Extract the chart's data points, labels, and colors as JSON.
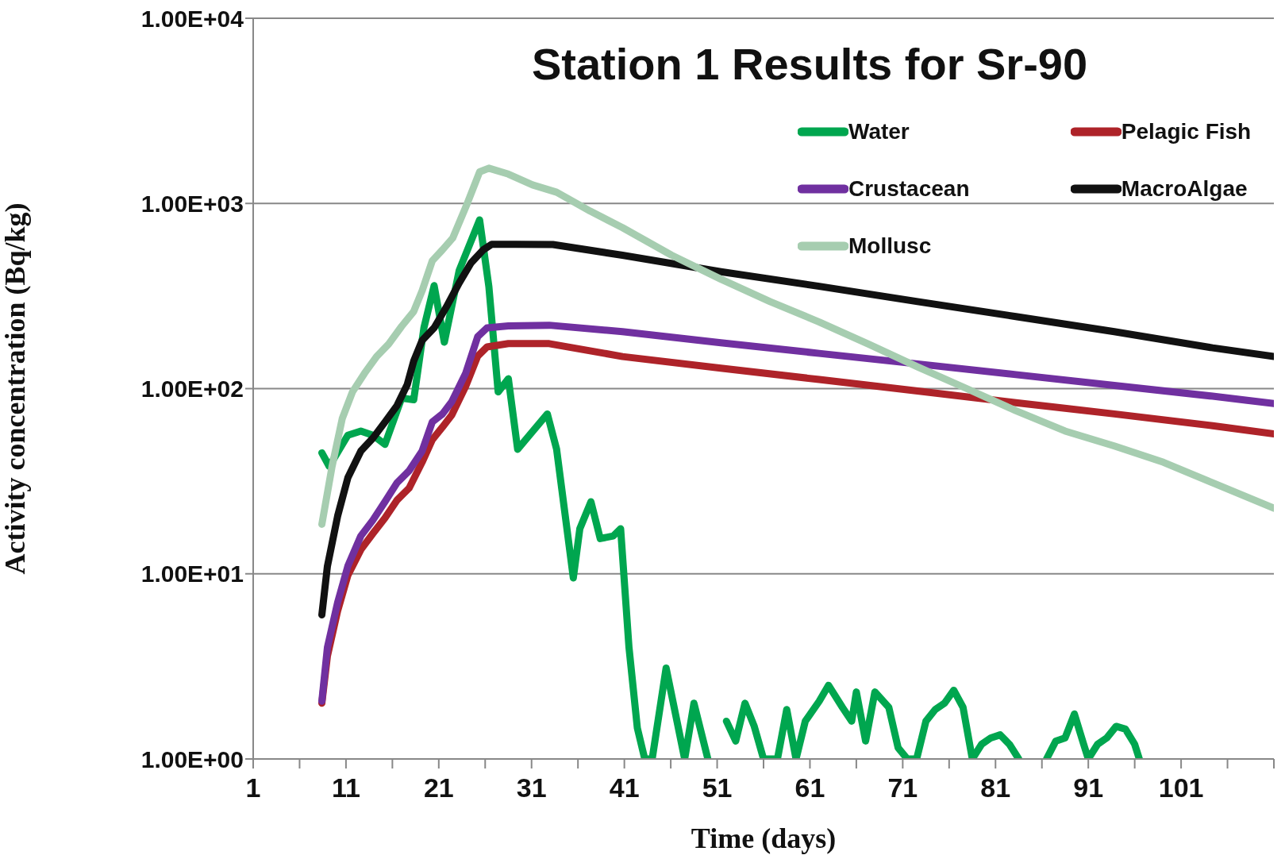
{
  "chart_data": {
    "type": "line",
    "title": "Station 1 Results for Sr-90",
    "xlabel": "Time (days)",
    "ylabel": "Activity concentration (Bq/kg)",
    "log": "y",
    "grid": "y",
    "legend": "top right",
    "marker": "none",
    "line_style": "solid",
    "xlim": [
      1,
      111
    ],
    "xticks": [
      1,
      {
        "value": 6,
        "label": null
      },
      11,
      {
        "value": 16,
        "label": null
      },
      21,
      {
        "value": 26,
        "label": null
      },
      31,
      {
        "value": 36,
        "label": null
      },
      41,
      {
        "value": 46,
        "label": null
      },
      51,
      {
        "value": 56,
        "label": null
      },
      61,
      {
        "value": 66,
        "label": null
      },
      71,
      {
        "value": 76,
        "label": null
      },
      81,
      {
        "value": 86,
        "label": null
      },
      91,
      {
        "value": 96,
        "label": null
      },
      101,
      {
        "value": 106,
        "label": null
      },
      {
        "value": 111,
        "label": null
      }
    ],
    "ylim": [
      1,
      10000
    ],
    "yticks": [
      {
        "value": 1,
        "label": "1.00E+00"
      },
      {
        "value": 10,
        "label": "1.00E+01"
      },
      {
        "value": 100,
        "label": "1.00E+02"
      },
      {
        "value": 1000,
        "label": "1.00E+03"
      },
      {
        "value": 10000,
        "label": "1.00E+04"
      }
    ],
    "series": [
      {
        "name": "Water",
        "color": "#00a64f",
        "x": [
          8.4,
          9.2,
          11.2,
          12.6,
          13.9,
          15.2,
          17,
          18.3,
          19.4,
          20.5,
          21.6,
          23.2,
          25.4,
          26.4,
          27.4,
          28.5,
          29.5,
          30.9,
          32.7,
          33.7,
          35.5,
          36.2,
          37.4,
          38.4,
          39.8,
          40.6,
          41.5,
          42.4,
          43.2,
          44,
          45.5,
          47.5,
          48.5,
          50,
          51.5,
          52,
          53,
          54,
          55,
          56,
          57.5,
          58.5,
          59.5,
          60.5,
          62,
          63,
          64.5,
          65.5,
          66,
          67,
          68,
          69.5,
          70.5,
          71.5,
          72.5,
          73.5,
          74.5,
          75.5,
          76.5,
          77.5,
          78.5,
          79.5,
          80.5,
          81.5,
          82.5,
          83.5,
          84.5,
          86.5,
          87.5,
          88.5,
          89.5,
          90.5,
          91,
          92,
          93,
          94,
          95,
          96,
          96.5
        ],
        "values": [
          45,
          38,
          56,
          59,
          56,
          50,
          89,
          87,
          213,
          360,
          178,
          435,
          815,
          355,
          96,
          113,
          47,
          57,
          73,
          47,
          9.5,
          17.5,
          24.5,
          15.5,
          16,
          17.5,
          4,
          1.47,
          1,
          1,
          3.1,
          1,
          2,
          1,
          null,
          1.6,
          1.25,
          2,
          1.5,
          1,
          1,
          1.85,
          1,
          1.6,
          2.05,
          2.5,
          1.9,
          1.6,
          2.3,
          1.25,
          2.3,
          1.9,
          1.15,
          1,
          1,
          1.6,
          1.85,
          2,
          2.35,
          1.9,
          1,
          1.2,
          1.3,
          1.35,
          1.2,
          1,
          null,
          1,
          1.25,
          1.3,
          1.75,
          1.2,
          1,
          1.2,
          1.3,
          1.5,
          1.45,
          1.2,
          1
        ]
      },
      {
        "name": "Pelagic Fish",
        "color": "#ae2329",
        "x": [
          8.4,
          9,
          10.1,
          11.2,
          12.6,
          13.9,
          15.2,
          16.5,
          17.8,
          19.2,
          20.3,
          21.4,
          22.4,
          23.9,
          25.2,
          26.2,
          28.5,
          32.9,
          40.8,
          51.4,
          62,
          72.6,
          83.2,
          93.8,
          104.4,
          111
        ],
        "values": [
          2,
          3.6,
          6.3,
          9.8,
          13.5,
          16.5,
          20,
          25,
          29,
          40,
          53,
          62,
          72,
          103,
          150,
          168,
          175,
          175,
          149,
          129,
          112,
          97,
          84,
          73,
          63,
          57
        ]
      },
      {
        "name": "Crustacean",
        "color": "#7030a0",
        "x": [
          8.4,
          9,
          10.1,
          11.2,
          12.6,
          13.9,
          15.2,
          16.5,
          17.8,
          19.2,
          20.3,
          21.4,
          22.4,
          23.9,
          25.2,
          26.2,
          28.5,
          32.9,
          40.8,
          51.4,
          62,
          72.6,
          83.2,
          93.8,
          104.4,
          111
        ],
        "values": [
          2.05,
          4,
          7,
          11,
          16,
          19.5,
          24.5,
          31,
          36,
          46,
          66,
          73,
          85,
          121,
          191,
          213,
          218,
          220,
          203,
          177,
          155,
          136,
          119,
          104,
          91,
          83
        ]
      },
      {
        "name": "MacroAlgae",
        "color": "#111111",
        "x": [
          8.4,
          9,
          10.1,
          11.2,
          12.6,
          13.9,
          15.2,
          16.5,
          17.6,
          18.3,
          19.2,
          20.5,
          21.8,
          23.2,
          24.5,
          25.8,
          26.7,
          29.3,
          33.3,
          40.8,
          51.4,
          62,
          72.6,
          83.2,
          93.8,
          104.4,
          111
        ],
        "values": [
          6,
          11,
          20.5,
          33,
          46,
          54,
          66,
          81,
          105,
          141,
          182,
          213,
          275,
          372,
          479,
          562,
          602,
          602,
          600,
          525,
          428,
          357,
          295,
          245,
          203,
          166,
          149
        ]
      },
      {
        "name": "Mollusc",
        "color": "#a6cdb0",
        "x": [
          8.4,
          9.5,
          10.6,
          11.7,
          13,
          14.3,
          15.6,
          17,
          18.3,
          19.2,
          20.3,
          21.4,
          22.5,
          24,
          25.4,
          26.4,
          28.5,
          31.1,
          33.7,
          37.3,
          40.8,
          46.1,
          51.4,
          56.7,
          62,
          67.3,
          72.6,
          77.9,
          83.2,
          88.5,
          93.8,
          99.1,
          104.4,
          111
        ],
        "values": [
          18.5,
          38,
          69,
          96,
          121,
          149,
          174,
          217,
          261,
          337,
          490,
          562,
          650,
          980,
          1480,
          1550,
          1440,
          1260,
          1150,
          910,
          740,
          525,
          390,
          295,
          229,
          174,
          131,
          100,
          76,
          59,
          49,
          40,
          31,
          22.6
        ]
      }
    ]
  }
}
